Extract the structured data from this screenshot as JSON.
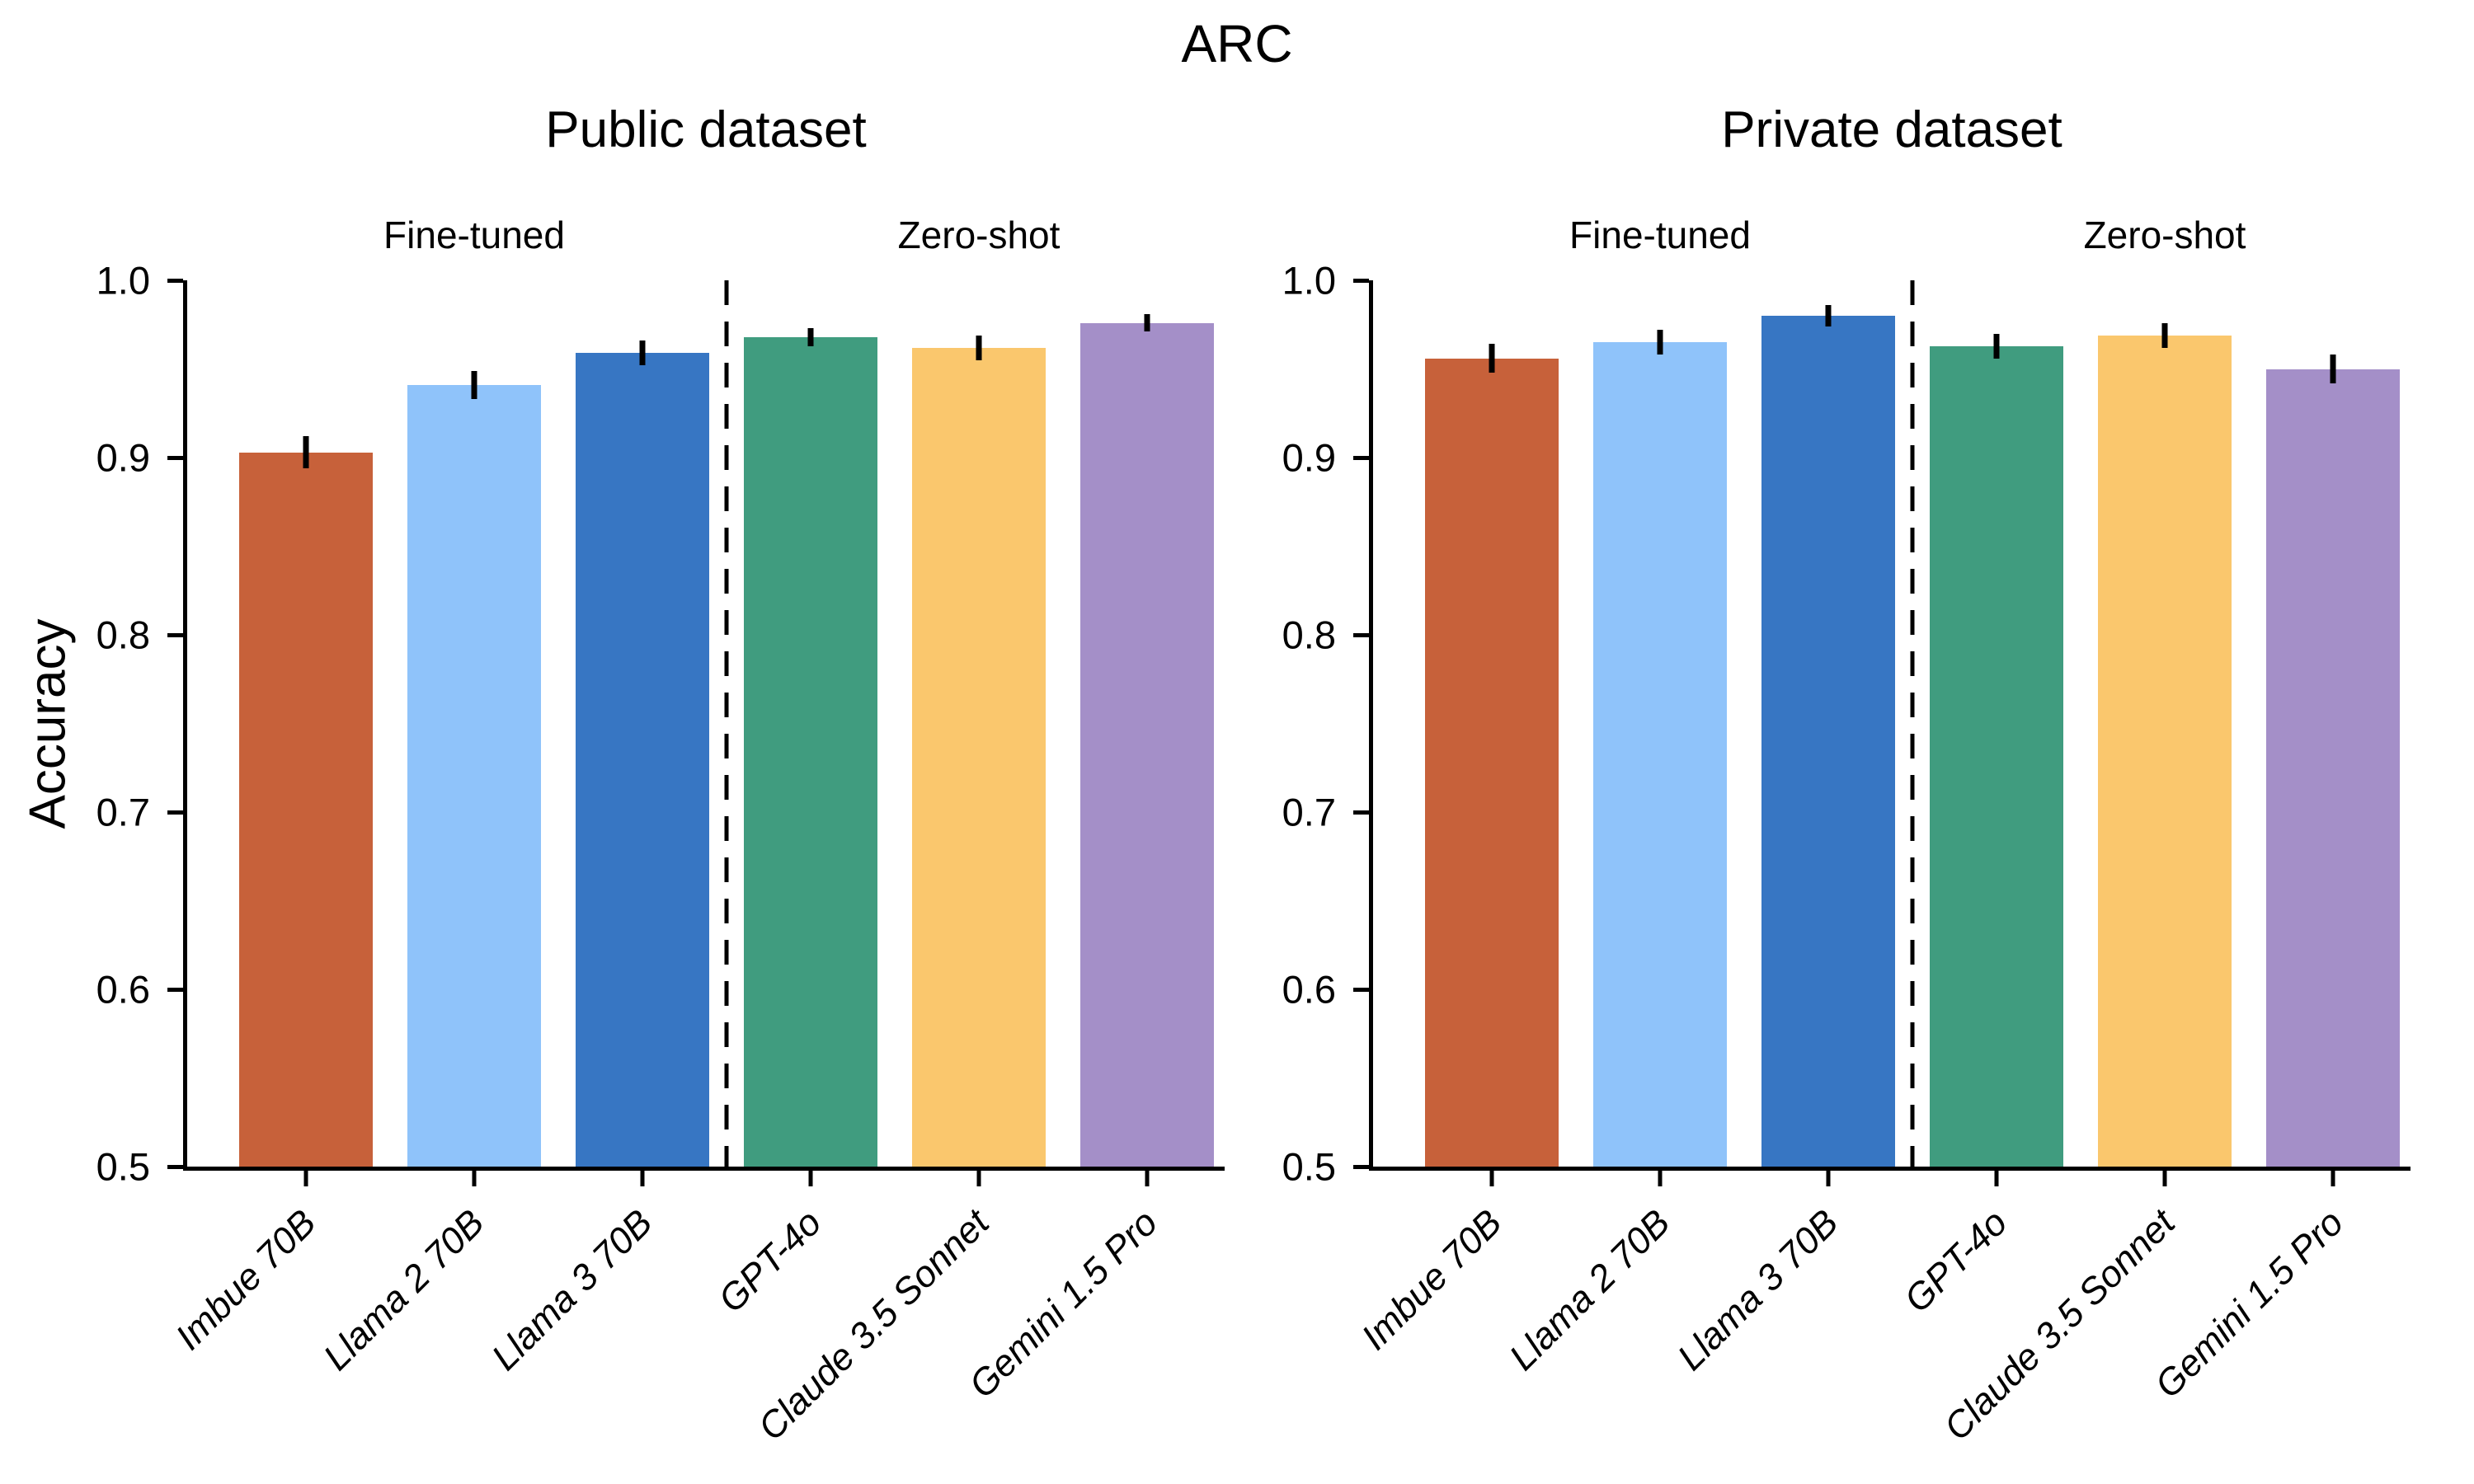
{
  "chart_data": {
    "type": "bar",
    "suptitle": "ARC",
    "ylabel": "Accuracy",
    "ylim": [
      0.5,
      1.0
    ],
    "yticks": [
      0.5,
      0.6,
      0.7,
      0.8,
      0.9,
      1.0
    ],
    "grid": false,
    "legend": "none",
    "categories": [
      "Imbue 70B",
      "Llama 2 70B",
      "Llama 3 70B",
      "GPT-4o",
      "Claude 3.5 Sonnet",
      "Gemini 1.5 Pro"
    ],
    "bar_colors": [
      "#C7613A",
      "#8FC3FA",
      "#3776C3",
      "#409C7F",
      "#FAC76D",
      "#A48FC8"
    ],
    "group_labels": [
      {
        "label": "Fine-tuned",
        "over_bar_index": 1
      },
      {
        "label": "Zero-shot",
        "over_bar_index": 4
      }
    ],
    "separator_between": [
      2,
      3
    ],
    "separator_style": "black dashed vertical line",
    "error_bar_color": "#000000",
    "axis_color": "#000000",
    "panels": [
      {
        "title": "Public dataset",
        "series": [
          {
            "name": "Accuracy",
            "values": [
              0.903,
              0.941,
              0.959,
              0.968,
              0.962,
              0.976
            ],
            "errors": [
              0.009,
              0.008,
              0.007,
              0.005,
              0.007,
              0.005
            ]
          }
        ]
      },
      {
        "title": "Private dataset",
        "series": [
          {
            "name": "Accuracy",
            "values": [
              0.956,
              0.965,
              0.98,
              0.963,
              0.969,
              0.95
            ],
            "errors": [
              0.008,
              0.007,
              0.006,
              0.007,
              0.007,
              0.008
            ]
          }
        ]
      }
    ]
  }
}
